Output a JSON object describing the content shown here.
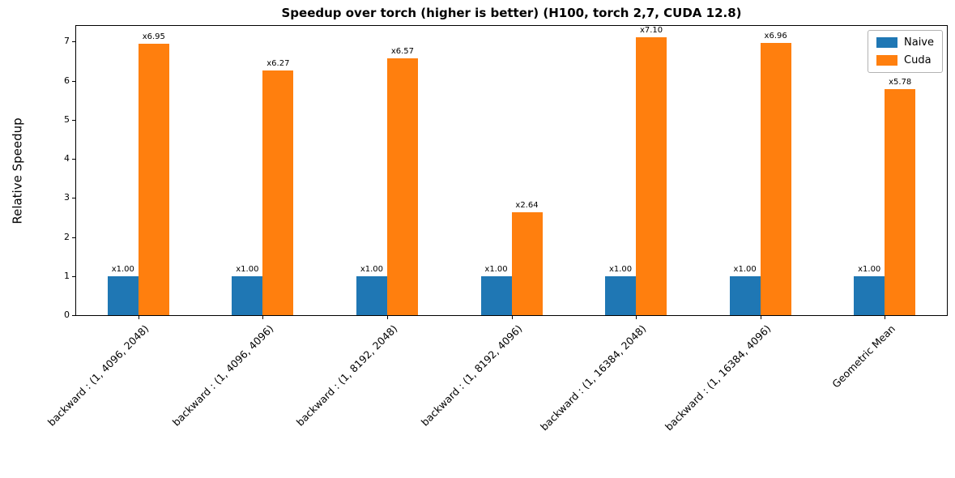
{
  "chart_data": {
    "type": "bar",
    "title": "Speedup over torch (higher is better) (H100, torch 2,7, CUDA 12.8)",
    "xlabel": "",
    "ylabel": "Relative Speedup",
    "ylim": [
      0,
      7.4
    ],
    "yticks": [
      0,
      1,
      2,
      3,
      4,
      5,
      6,
      7
    ],
    "grid": false,
    "legend_position": "upper right",
    "categories": [
      "backward : (1, 4096, 2048)",
      "backward : (1, 4096, 4096)",
      "backward : (1, 8192, 2048)",
      "backward : (1, 8192, 4096)",
      "backward : (1, 16384, 2048)",
      "backward : (1, 16384, 4096)",
      "Geometric Mean"
    ],
    "series": [
      {
        "name": "Naive",
        "color": "#1f77b4",
        "values": [
          1.0,
          1.0,
          1.0,
          1.0,
          1.0,
          1.0,
          1.0
        ],
        "labels": [
          "x1.00",
          "x1.00",
          "x1.00",
          "x1.00",
          "x1.00",
          "x1.00",
          "x1.00"
        ]
      },
      {
        "name": "Cuda",
        "color": "#ff7f0e",
        "values": [
          6.95,
          6.27,
          6.57,
          2.64,
          7.1,
          6.96,
          5.78
        ],
        "labels": [
          "x6.95",
          "x6.27",
          "x6.57",
          "x2.64",
          "x7.10",
          "x6.96",
          "x5.78"
        ]
      }
    ]
  }
}
